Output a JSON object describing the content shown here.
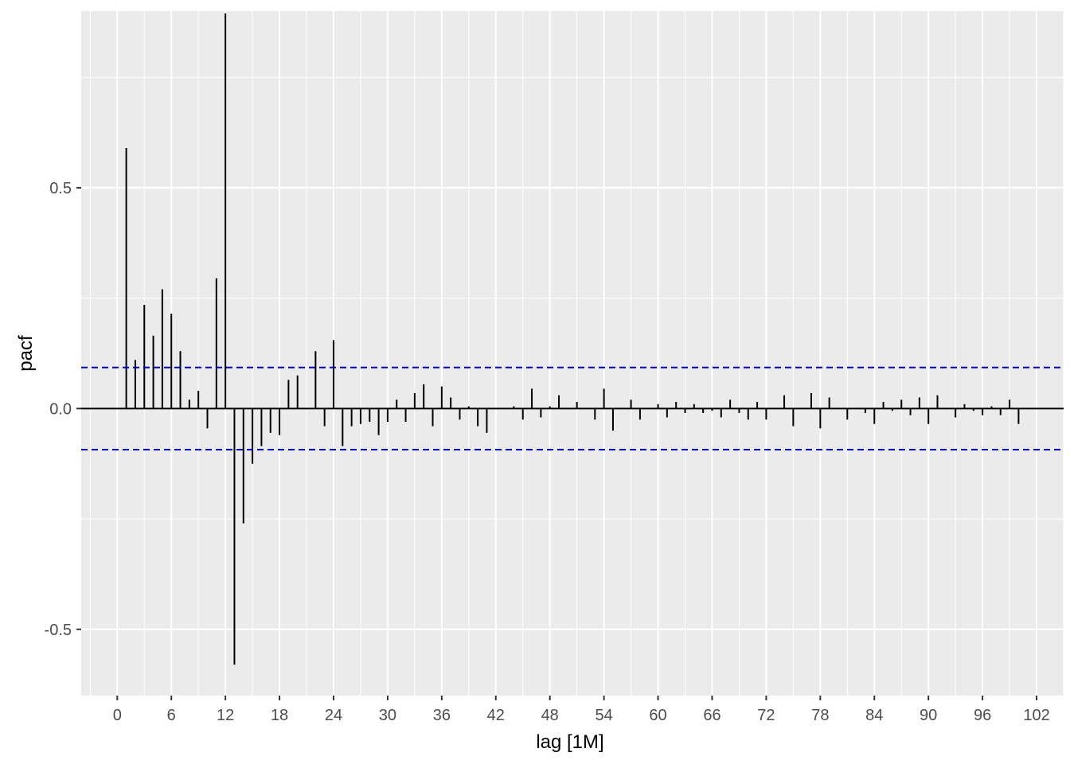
{
  "chart_data": {
    "type": "bar",
    "xlabel": "lag [1M]",
    "ylabel": "pacf",
    "xlim": [
      -4,
      105
    ],
    "ylim": [
      -0.65,
      0.9
    ],
    "x_ticks": [
      0,
      6,
      12,
      18,
      24,
      30,
      36,
      42,
      48,
      54,
      60,
      66,
      72,
      78,
      84,
      90,
      96,
      102
    ],
    "y_ticks": [
      -0.5,
      0.0,
      0.5
    ],
    "y_tick_labels": [
      "-0.5",
      "0.0",
      "0.5"
    ],
    "confidence_bound": 0.093,
    "grid": true,
    "lags": [
      1,
      2,
      3,
      4,
      5,
      6,
      7,
      8,
      9,
      10,
      11,
      12,
      13,
      14,
      15,
      16,
      17,
      18,
      19,
      20,
      21,
      22,
      23,
      24,
      25,
      26,
      27,
      28,
      29,
      30,
      31,
      32,
      33,
      34,
      35,
      36,
      37,
      38,
      39,
      40,
      41,
      42,
      43,
      44,
      45,
      46,
      47,
      48,
      49,
      50,
      51,
      52,
      53,
      54,
      55,
      56,
      57,
      58,
      59,
      60,
      61,
      62,
      63,
      64,
      65,
      66,
      67,
      68,
      69,
      70,
      71,
      72,
      73,
      74,
      75,
      76,
      77,
      78,
      79,
      80,
      81,
      82,
      83,
      84,
      85,
      86,
      87,
      88,
      89,
      90,
      91,
      92,
      93,
      94,
      95,
      96,
      97,
      98,
      99,
      100
    ],
    "values": [
      0.59,
      0.11,
      0.235,
      0.165,
      0.27,
      0.215,
      0.13,
      0.02,
      0.04,
      -0.045,
      0.295,
      0.895,
      -0.58,
      -0.26,
      -0.125,
      -0.085,
      -0.055,
      -0.06,
      0.065,
      0.075,
      0.0,
      0.13,
      -0.04,
      0.155,
      -0.085,
      -0.04,
      -0.035,
      -0.03,
      -0.06,
      -0.03,
      0.02,
      -0.03,
      0.035,
      0.055,
      -0.04,
      0.05,
      0.025,
      -0.025,
      0.005,
      -0.04,
      -0.055,
      0.0,
      0.0,
      0.005,
      -0.025,
      0.045,
      -0.02,
      0.005,
      0.03,
      0.0,
      0.015,
      0.0,
      -0.025,
      0.045,
      -0.05,
      0.0,
      0.02,
      -0.025,
      0.0,
      0.01,
      -0.02,
      0.015,
      -0.01,
      0.01,
      -0.01,
      -0.005,
      -0.02,
      0.02,
      -0.01,
      -0.025,
      0.015,
      -0.025,
      0.0,
      0.03,
      -0.04,
      0.0,
      0.035,
      -0.045,
      0.025,
      0.0,
      -0.025,
      0.0,
      -0.01,
      -0.035,
      0.015,
      -0.005,
      0.02,
      -0.015,
      0.025,
      -0.035,
      0.03,
      0.0,
      -0.02,
      0.01,
      -0.005,
      -0.015,
      0.005,
      -0.015,
      0.02,
      -0.035
    ]
  }
}
